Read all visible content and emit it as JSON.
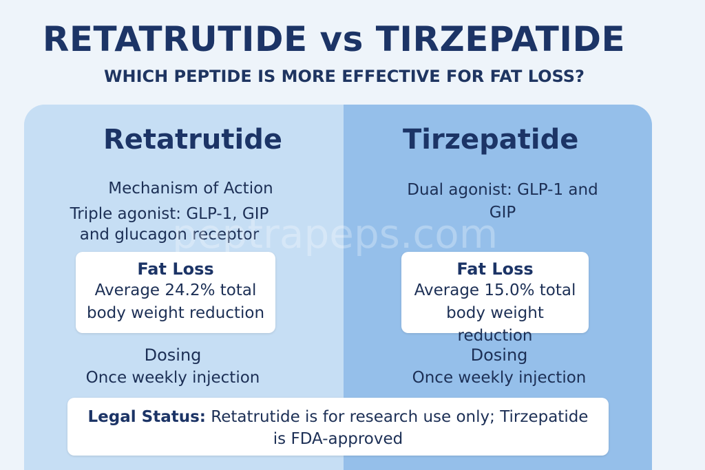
{
  "header": {
    "title": "RETATRUTIDE vs TIRZEPATIDE",
    "subtitle": "WHICH PEPTIDE IS MORE EFFECTIVE FOR FAT LOSS?"
  },
  "left": {
    "name": "Retatrutide",
    "mechanism_label": "Mechanism of Action",
    "mechanism_line1": "Triple agonist: GLP-1, GIP",
    "mechanism_line2": "and glucagon receptor",
    "fat_loss_title": "Fat Loss",
    "fat_loss_line1": "Average 24.2% total",
    "fat_loss_line2": "body weight reduction",
    "dosing_label": "Dosing",
    "dosing_value": "Once weekly injection"
  },
  "right": {
    "name": "Tirzepatide",
    "mechanism_line1": "Dual agonist: GLP-1 and",
    "mechanism_line2": "GIP",
    "fat_loss_title": "Fat Loss",
    "fat_loss_line1": "Average 15.0% total",
    "fat_loss_line2": "body weight reduction",
    "dosing_label": "Dosing",
    "dosing_value": "Once weekly injection"
  },
  "legal": {
    "label": "Legal Status:",
    "line1": "Retatrutide is for research use only; Tirzepatide",
    "line2": "is FDA-approved"
  },
  "watermark": "peptrapeps.com",
  "colors": {
    "title": "#1c3466",
    "left_column": "#c6def4",
    "right_column": "#95bfea",
    "background": "#eef4fa",
    "card": "#ffffff"
  }
}
